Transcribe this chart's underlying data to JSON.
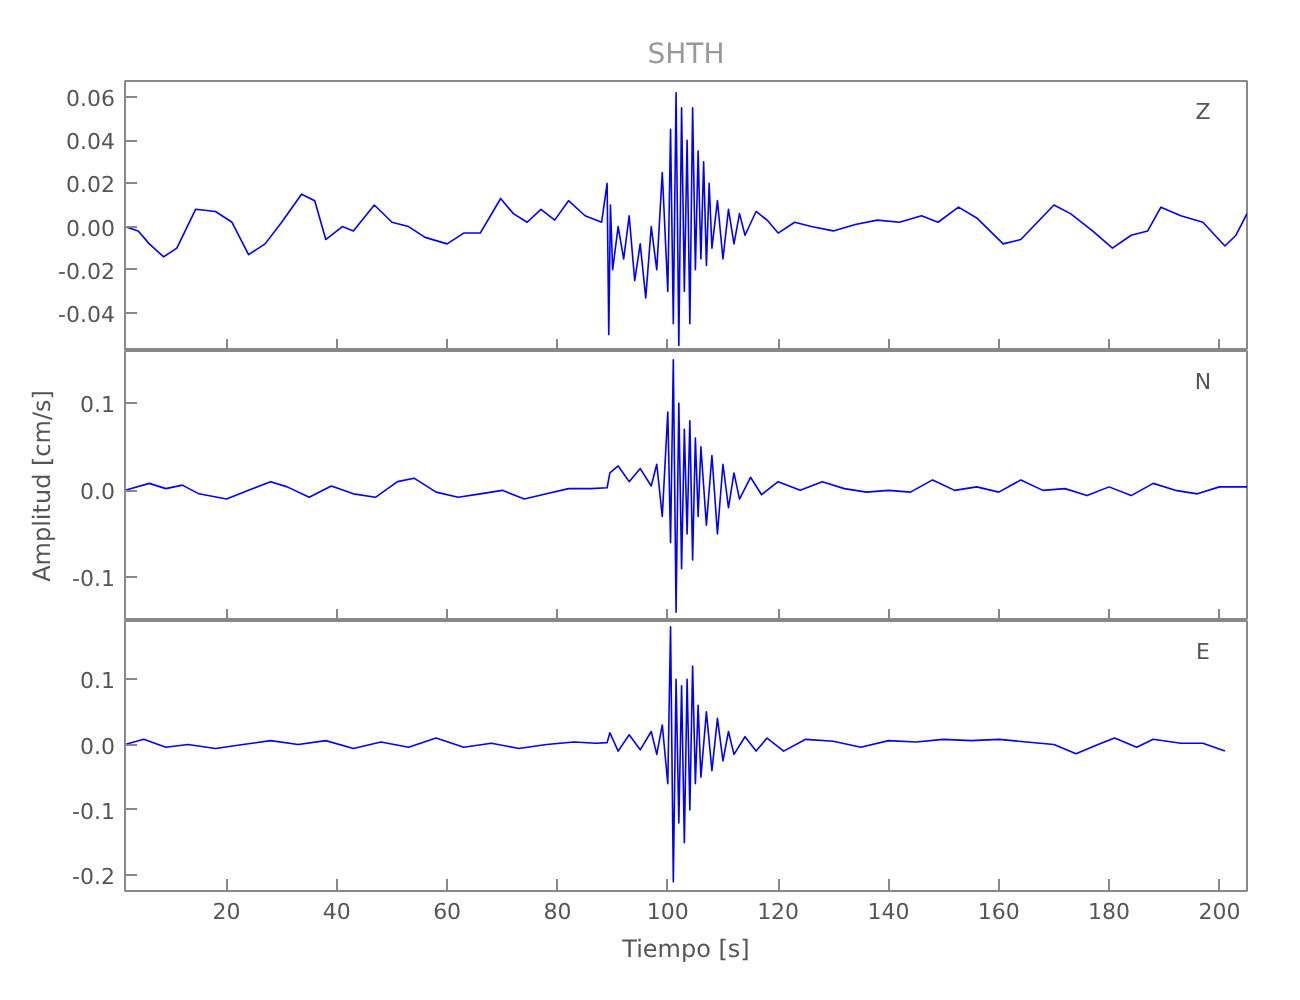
{
  "chart_data": [
    {
      "type": "line",
      "title": "SHTH",
      "annotations": [
        "Z"
      ],
      "tick_labels": "y",
      "grid": false,
      "xlim": [
        1.6,
        205
      ],
      "xticks": [
        20,
        40,
        60,
        80,
        100,
        120,
        140,
        160,
        180,
        200
      ],
      "ylim": [
        -0.0576,
        0.0674
      ],
      "yticks": [
        {
          "value": -0.04,
          "label": "-0.04"
        },
        {
          "value": -0.02,
          "label": "-0.02"
        },
        {
          "value": 0,
          "label": "0.00"
        },
        {
          "value": 0.02,
          "label": "0.02"
        },
        {
          "value": 0.04,
          "label": "0.04"
        },
        {
          "value": 0.06,
          "label": "0.06"
        }
      ],
      "x": [
        1.6,
        4,
        6,
        8.6,
        11,
        14.4,
        18,
        21,
        24,
        27,
        30,
        33.6,
        36,
        38,
        41,
        43,
        46.8,
        50,
        53,
        56,
        60,
        63,
        66,
        69.7,
        72,
        74.5,
        77,
        79.5,
        82,
        85,
        88,
        89,
        89.3,
        89.6,
        90,
        91,
        92,
        93,
        94,
        95,
        96,
        97,
        98,
        99,
        100,
        100.5,
        101,
        101.5,
        102,
        102.5,
        103,
        103.5,
        104,
        104.5,
        105,
        105.5,
        106,
        106.5,
        107,
        107.5,
        108,
        109,
        110,
        111,
        112,
        113,
        114,
        116,
        118,
        120,
        123,
        126,
        130,
        134,
        138,
        142,
        146,
        149,
        152.7,
        156,
        160.8,
        164,
        167,
        170,
        173,
        177,
        180.6,
        184,
        187,
        189.4,
        193,
        197,
        201,
        203,
        205
      ],
      "series": [
        {
          "color": "#0000ff",
          "values": [
            0.0,
            -0.002,
            -0.008,
            -0.014,
            -0.01,
            0.008,
            0.007,
            0.002,
            -0.013,
            -0.008,
            0.002,
            0.015,
            0.012,
            -0.006,
            0.0,
            -0.002,
            0.01,
            0.002,
            0.0,
            -0.005,
            -0.008,
            -0.003,
            -0.003,
            0.013,
            0.006,
            0.002,
            0.008,
            0.003,
            0.012,
            0.005,
            0.002,
            0.02,
            -0.05,
            0.01,
            -0.02,
            0.0,
            -0.015,
            0.005,
            -0.025,
            -0.008,
            -0.033,
            0.0,
            -0.02,
            0.025,
            -0.03,
            0.045,
            -0.045,
            0.062,
            -0.055,
            0.055,
            -0.03,
            0.04,
            -0.045,
            0.055,
            -0.02,
            0.035,
            -0.015,
            0.03,
            -0.018,
            0.02,
            -0.01,
            0.012,
            -0.015,
            0.008,
            -0.008,
            0.006,
            -0.004,
            0.007,
            0.003,
            -0.003,
            0.002,
            0.0,
            -0.002,
            0.001,
            0.003,
            0.002,
            0.005,
            0.002,
            0.009,
            0.004,
            -0.008,
            -0.006,
            0.002,
            0.01,
            0.006,
            -0.002,
            -0.01,
            -0.004,
            -0.002,
            0.009,
            0.005,
            0.002,
            -0.009,
            -0.004,
            0.006
          ]
        }
      ]
    },
    {
      "type": "line",
      "ylabel": "Amplitud [cm/s]",
      "annotations": [
        "N"
      ],
      "tick_labels": "y",
      "grid": false,
      "xlim": [
        1.6,
        205
      ],
      "xticks": [
        20,
        40,
        60,
        80,
        100,
        120,
        140,
        160,
        180,
        200
      ],
      "ylim": [
        -0.15,
        0.16
      ],
      "yticks": [
        {
          "value": -0.1,
          "label": "-0.1"
        },
        {
          "value": 0,
          "label": "0.0"
        },
        {
          "value": 0.1,
          "label": "0.1"
        }
      ],
      "x": [
        1.6,
        6,
        9,
        12,
        15,
        20,
        24,
        28,
        31,
        35,
        39,
        43,
        47,
        51,
        54,
        58,
        62,
        66,
        70,
        74,
        78,
        82,
        86,
        89,
        89.5,
        91,
        93,
        95,
        97,
        98,
        99,
        100,
        100.5,
        101,
        101.5,
        102,
        102.5,
        103,
        103.5,
        104,
        104.5,
        105,
        105.5,
        106,
        107,
        108,
        109,
        110,
        111,
        112,
        113,
        115,
        117,
        120,
        124,
        128,
        132,
        136,
        140,
        144,
        148,
        152,
        156,
        160,
        164,
        168,
        172,
        176,
        180,
        184,
        188,
        192,
        196,
        200,
        205
      ],
      "series": [
        {
          "color": "#0000ff",
          "values": [
            0.0,
            0.008,
            0.002,
            0.006,
            -0.004,
            -0.01,
            0.0,
            0.01,
            0.004,
            -0.008,
            0.005,
            -0.004,
            -0.008,
            0.01,
            0.014,
            -0.002,
            -0.008,
            -0.004,
            0.0,
            -0.01,
            -0.004,
            0.002,
            0.002,
            0.003,
            0.02,
            0.028,
            0.01,
            0.025,
            0.005,
            0.03,
            -0.03,
            0.09,
            -0.06,
            0.15,
            -0.14,
            0.1,
            -0.09,
            0.07,
            -0.05,
            0.08,
            -0.08,
            0.06,
            -0.03,
            0.05,
            -0.04,
            0.04,
            -0.05,
            0.03,
            -0.02,
            0.02,
            -0.01,
            0.015,
            -0.005,
            0.01,
            0.0,
            0.01,
            0.002,
            -0.002,
            0.0,
            -0.002,
            0.012,
            0.0,
            0.004,
            -0.002,
            0.012,
            0.0,
            0.002,
            -0.006,
            0.004,
            -0.006,
            0.008,
            0.0,
            -0.004,
            0.004,
            0.004
          ]
        }
      ]
    },
    {
      "type": "line",
      "xlabel": "Tiempo [s]",
      "annotations": [
        "E"
      ],
      "grid": false,
      "xlim": [
        1.6,
        205
      ],
      "xticks": [
        20,
        40,
        60,
        80,
        100,
        120,
        140,
        160,
        180,
        200
      ],
      "ylim": [
        -0.224,
        0.189
      ],
      "yticks": [
        {
          "value": -0.2,
          "label": "-0.2"
        },
        {
          "value": -0.1,
          "label": "-0.1"
        },
        {
          "value": 0,
          "label": "0.0"
        },
        {
          "value": 0.1,
          "label": "0.1"
        }
      ],
      "x": [
        1.6,
        5,
        9,
        13,
        18,
        23,
        28,
        33,
        38,
        43,
        48,
        53,
        58,
        63,
        68,
        73,
        78,
        83,
        87,
        89,
        89.5,
        91,
        93,
        95,
        97,
        98,
        99,
        100,
        100.5,
        101,
        101.5,
        102,
        102.5,
        103,
        103.5,
        104,
        104.5,
        105,
        105.5,
        106,
        107,
        108,
        109,
        110,
        111,
        112,
        114,
        116,
        118,
        121,
        125,
        130,
        135,
        140,
        145,
        150,
        155,
        160,
        165,
        170,
        174,
        178,
        181,
        185,
        188,
        193,
        197,
        201
      ],
      "series": [
        {
          "color": "#0000ff",
          "values": [
            0.0,
            0.008,
            -0.004,
            0.0,
            -0.006,
            0.0,
            0.006,
            0.0,
            0.006,
            -0.006,
            0.004,
            -0.004,
            0.01,
            -0.004,
            0.002,
            -0.006,
            0.0,
            0.004,
            0.002,
            0.003,
            0.018,
            -0.01,
            0.015,
            -0.008,
            0.02,
            -0.015,
            0.03,
            -0.06,
            0.18,
            -0.21,
            0.1,
            -0.12,
            0.09,
            -0.15,
            0.1,
            -0.1,
            0.12,
            -0.06,
            0.06,
            -0.05,
            0.05,
            -0.04,
            0.04,
            -0.025,
            0.02,
            -0.015,
            0.012,
            -0.01,
            0.01,
            -0.01,
            0.008,
            0.005,
            -0.004,
            0.006,
            0.004,
            0.008,
            0.006,
            0.008,
            0.004,
            0.0,
            -0.014,
            0.0,
            0.01,
            -0.004,
            0.008,
            0.002,
            0.002,
            -0.01
          ]
        }
      ]
    }
  ]
}
